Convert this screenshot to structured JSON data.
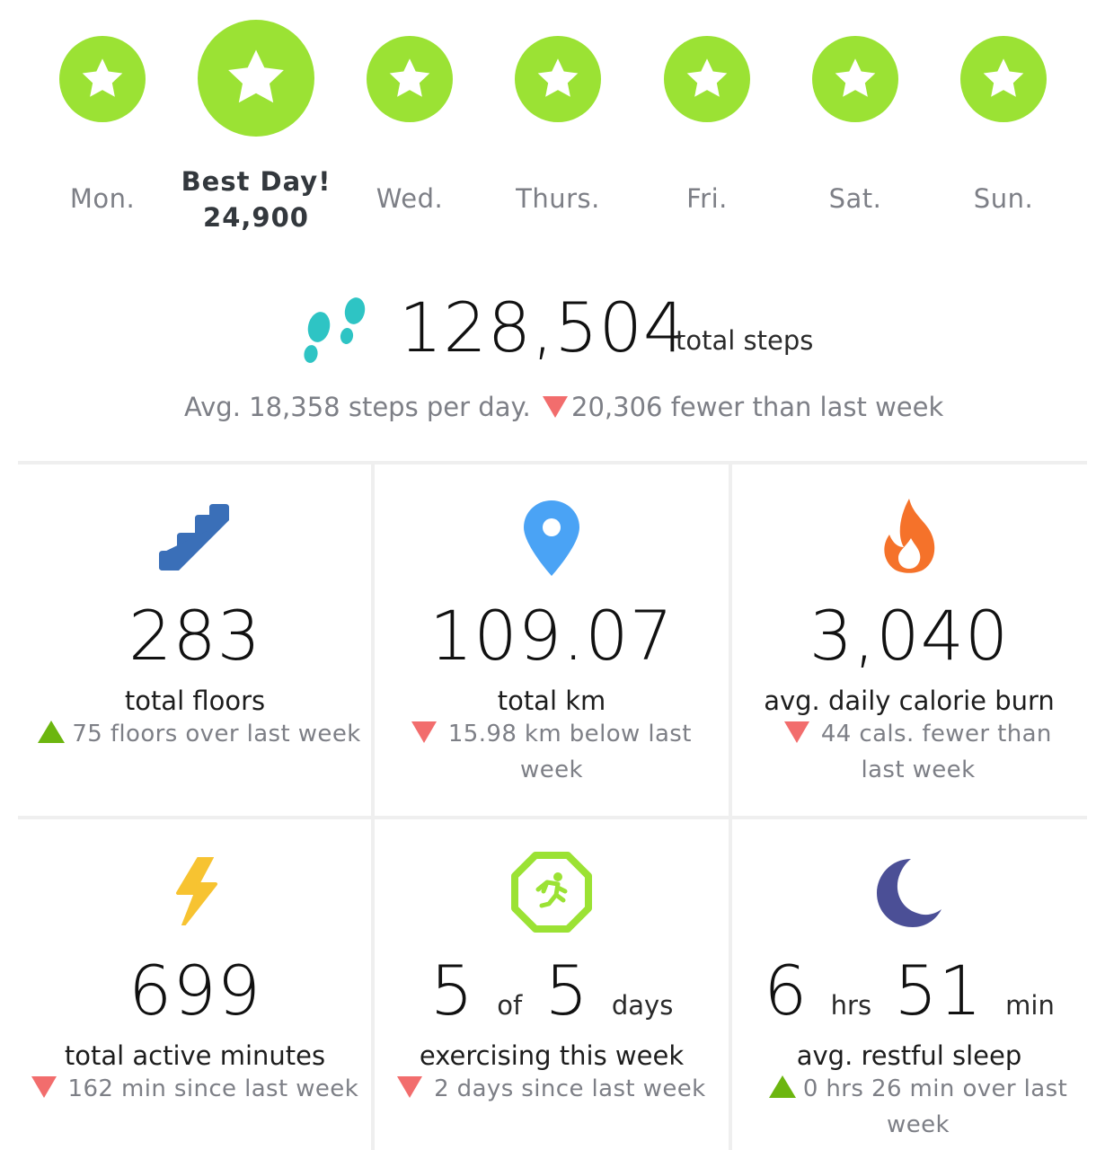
{
  "week": {
    "days": [
      {
        "label": "Mon.",
        "icon": "star-icon"
      },
      {
        "label": "Best Day!",
        "value": "24,900",
        "icon": "star-icon"
      },
      {
        "label": "Wed.",
        "icon": "star-icon"
      },
      {
        "label": "Thurs.",
        "icon": "star-icon"
      },
      {
        "label": "Fri.",
        "icon": "star-icon"
      },
      {
        "label": "Sat.",
        "icon": "star-icon"
      },
      {
        "label": "Sun.",
        "icon": "star-icon"
      }
    ]
  },
  "steps": {
    "total": "128,504",
    "unit": "total steps",
    "average": "Avg. 18,358 steps per day.",
    "change": "20,306 fewer than last week",
    "change_direction": "down",
    "icon": "footprints-icon"
  },
  "stats": [
    {
      "icon": "stairs-icon",
      "value": "283",
      "title": "total floors",
      "delta": "75 floors over last week",
      "direction": "up"
    },
    {
      "icon": "map-pin-icon",
      "value": "109.07",
      "title": "total km",
      "delta": "15.98 km below last week",
      "direction": "down"
    },
    {
      "icon": "flame-icon",
      "value": "3,040",
      "title": "avg. daily calorie burn",
      "delta": "44 cals. fewer than last week",
      "direction": "down"
    },
    {
      "icon": "lightning-icon",
      "value": "699",
      "title": "total active minutes",
      "delta": "162 min since last week",
      "direction": "down"
    },
    {
      "icon": "running-badge-icon",
      "value_a": "5",
      "of": "of",
      "value_b": "5",
      "unit": "days",
      "title": "exercising this week",
      "delta": "2 days since last week",
      "direction": "down"
    },
    {
      "icon": "moon-icon",
      "value_a": "6",
      "unit_a": "hrs",
      "value_b": "51",
      "unit_b": "min",
      "title": "avg. restful sleep",
      "delta": "0 hrs 26 min over last week",
      "direction": "up"
    }
  ],
  "colors": {
    "star_green": "#9be234",
    "down_red": "#f26d6d",
    "up_green": "#6cb60f",
    "stairs_blue": "#3a6fb8",
    "pin_blue": "#4aa3f5",
    "flame_orange": "#f5722a",
    "lightning_yellow": "#f7c331",
    "moon_indigo": "#4b4f96",
    "footprint_teal": "#2ec4c4"
  }
}
